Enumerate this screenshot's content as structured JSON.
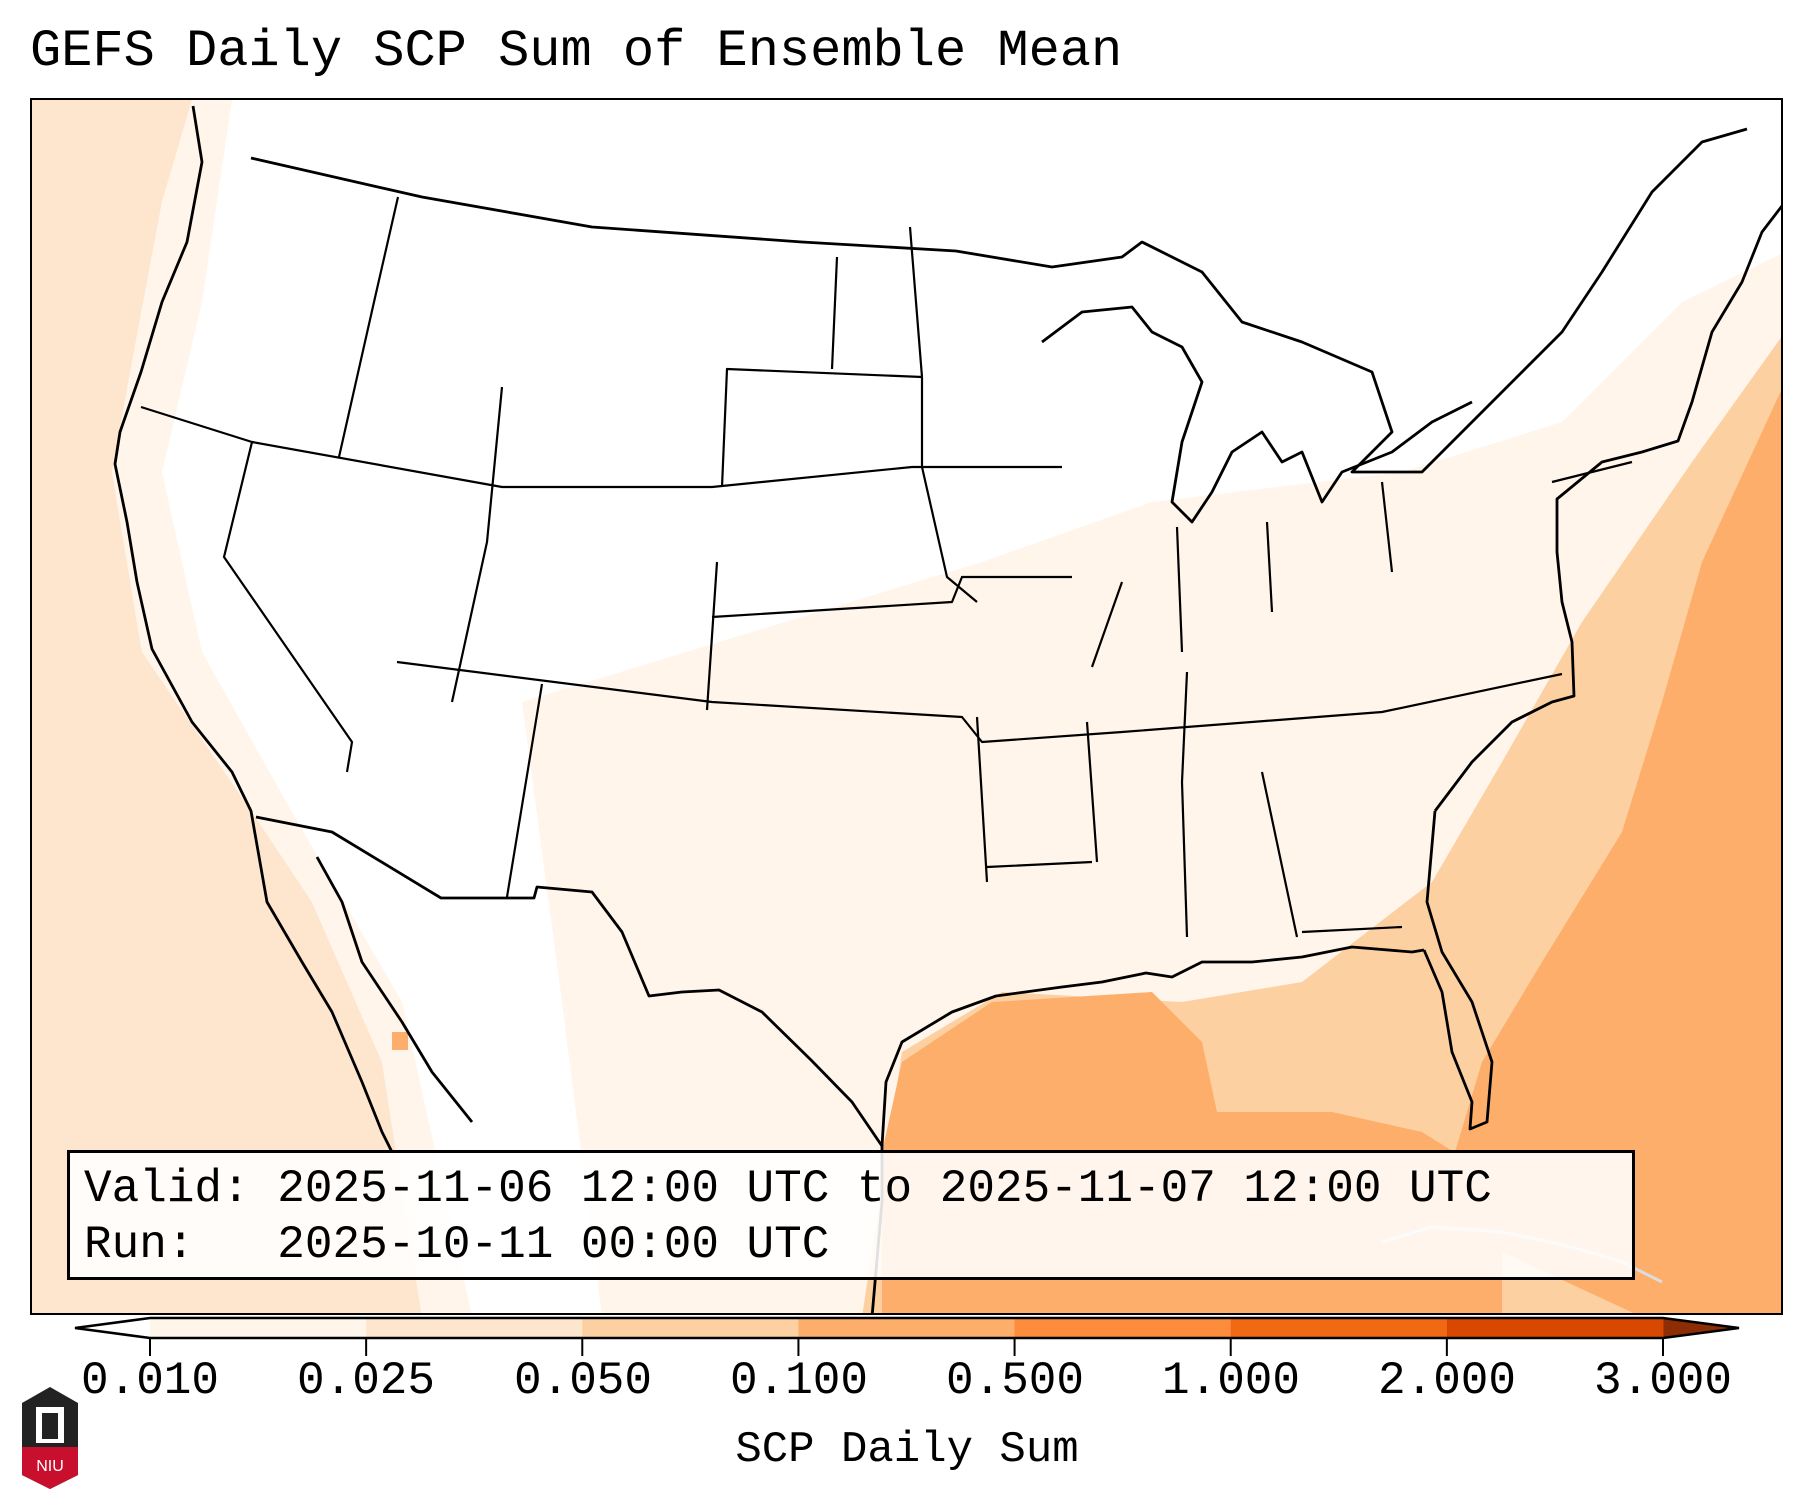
{
  "title": "GEFS Daily SCP Sum of Ensemble Mean",
  "legend": {
    "valid_label": "Valid:",
    "valid_text": "2025-11-06 12:00 UTC to 2025-11-07 12:00 UTC",
    "run_label": "Run:",
    "run_text": "2025-10-11 00:00 UTC"
  },
  "logo_text": "NIU",
  "chart_data": {
    "type": "heatmap",
    "title": "GEFS Daily SCP Sum of Ensemble Mean",
    "colorbar": {
      "label": "SCP Daily Sum",
      "ticks": [
        "0.010",
        "0.025",
        "0.050",
        "0.100",
        "0.500",
        "1.000",
        "2.000",
        "3.000"
      ],
      "colors": [
        "#fff5eb",
        "#fee6ce",
        "#fdd0a2",
        "#fdae6b",
        "#fd8d3c",
        "#f16913",
        "#d94801"
      ],
      "under_color": "#ffffff",
      "over_color": "#8c2d04",
      "extend": "both"
    },
    "regions": [
      {
        "name": "Western Atlantic / Bahamas",
        "level": "0.100-0.500"
      },
      {
        "name": "Gulf of Mexico",
        "level": "0.100-0.500"
      },
      {
        "name": "Southeast coast",
        "level": "0.050-0.100"
      },
      {
        "name": "Southern Plains / Mississippi Valley",
        "level": "0.010-0.050"
      },
      {
        "name": "Pacific offshore",
        "level": "0.010-0.050"
      }
    ]
  }
}
